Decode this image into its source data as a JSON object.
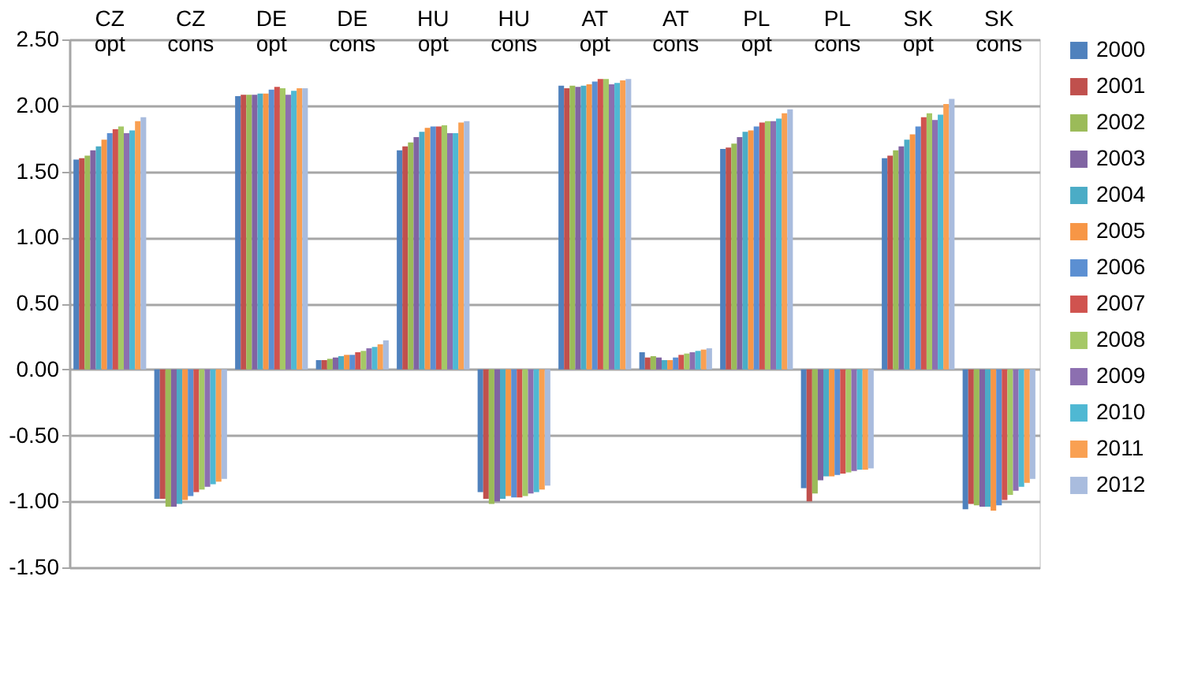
{
  "chart_data": {
    "type": "bar",
    "categories": [
      "CZ opt",
      "CZ cons",
      "DE opt",
      "DE cons",
      "HU opt",
      "HU cons",
      "AT opt",
      "AT cons",
      "PL opt",
      "PL cons",
      "SK opt",
      "SK cons"
    ],
    "series": [
      {
        "name": "2000",
        "color": "#4f81bd",
        "values": [
          1.59,
          -0.98,
          2.07,
          0.07,
          1.66,
          -0.93,
          2.15,
          0.13,
          1.67,
          -0.9,
          1.6,
          -1.06
        ]
      },
      {
        "name": "2001",
        "color": "#c0504d",
        "values": [
          1.6,
          -0.98,
          2.08,
          0.07,
          1.69,
          -0.98,
          2.13,
          0.09,
          1.68,
          -1.0,
          1.62,
          -1.02
        ]
      },
      {
        "name": "2002",
        "color": "#9bbb59",
        "values": [
          1.62,
          -1.04,
          2.08,
          0.08,
          1.72,
          -1.02,
          2.15,
          0.1,
          1.71,
          -0.94,
          1.66,
          -1.03
        ]
      },
      {
        "name": "2003",
        "color": "#8064a2",
        "values": [
          1.66,
          -1.04,
          2.08,
          0.09,
          1.76,
          -1.0,
          2.14,
          0.09,
          1.76,
          -0.84,
          1.69,
          -1.04
        ]
      },
      {
        "name": "2004",
        "color": "#4bacc6",
        "values": [
          1.69,
          -1.02,
          2.09,
          0.1,
          1.8,
          -0.98,
          2.15,
          0.07,
          1.8,
          -0.81,
          1.74,
          -1.04
        ]
      },
      {
        "name": "2005",
        "color": "#f79646",
        "values": [
          1.74,
          -0.99,
          2.09,
          0.11,
          1.83,
          -0.96,
          2.16,
          0.07,
          1.81,
          -0.81,
          1.78,
          -1.07
        ]
      },
      {
        "name": "2006",
        "color": "#5b8fd2",
        "values": [
          1.79,
          -0.96,
          2.12,
          0.11,
          1.84,
          -0.97,
          2.18,
          0.09,
          1.84,
          -0.8,
          1.84,
          -1.03
        ]
      },
      {
        "name": "2007",
        "color": "#d0534f",
        "values": [
          1.82,
          -0.93,
          2.14,
          0.13,
          1.84,
          -0.97,
          2.2,
          0.11,
          1.87,
          -0.79,
          1.91,
          -0.99
        ]
      },
      {
        "name": "2008",
        "color": "#a5c866",
        "values": [
          1.84,
          -0.91,
          2.13,
          0.14,
          1.85,
          -0.96,
          2.2,
          0.12,
          1.88,
          -0.78,
          1.94,
          -0.95
        ]
      },
      {
        "name": "2009",
        "color": "#8c6fb0",
        "values": [
          1.79,
          -0.89,
          2.08,
          0.16,
          1.79,
          -0.94,
          2.16,
          0.13,
          1.88,
          -0.77,
          1.89,
          -0.92
        ]
      },
      {
        "name": "2010",
        "color": "#4fb8d3",
        "values": [
          1.81,
          -0.87,
          2.11,
          0.17,
          1.79,
          -0.93,
          2.17,
          0.14,
          1.9,
          -0.76,
          1.93,
          -0.89
        ]
      },
      {
        "name": "2011",
        "color": "#f9a052",
        "values": [
          1.88,
          -0.85,
          2.13,
          0.19,
          1.87,
          -0.91,
          2.19,
          0.15,
          1.94,
          -0.76,
          2.01,
          -0.86
        ]
      },
      {
        "name": "2012",
        "color": "#a9bcde",
        "values": [
          1.91,
          -0.83,
          2.13,
          0.22,
          1.88,
          -0.88,
          2.2,
          0.16,
          1.97,
          -0.75,
          2.05,
          -0.83
        ]
      }
    ],
    "ylim": [
      -1.5,
      2.5
    ],
    "yticks": [
      {
        "value": -1.5,
        "label": "-1.50"
      },
      {
        "value": -1.0,
        "label": "-1.00"
      },
      {
        "value": -0.5,
        "label": "-0.50"
      },
      {
        "value": 0,
        "label": "0.00"
      },
      {
        "value": 0.5,
        "label": "0.50"
      },
      {
        "value": 1.0,
        "label": "1.00"
      },
      {
        "value": 1.5,
        "label": "1.50"
      },
      {
        "value": 2.0,
        "label": "2.00"
      },
      {
        "value": 2.5,
        "label": "2.50"
      }
    ],
    "grid": "y",
    "legend": "right"
  }
}
